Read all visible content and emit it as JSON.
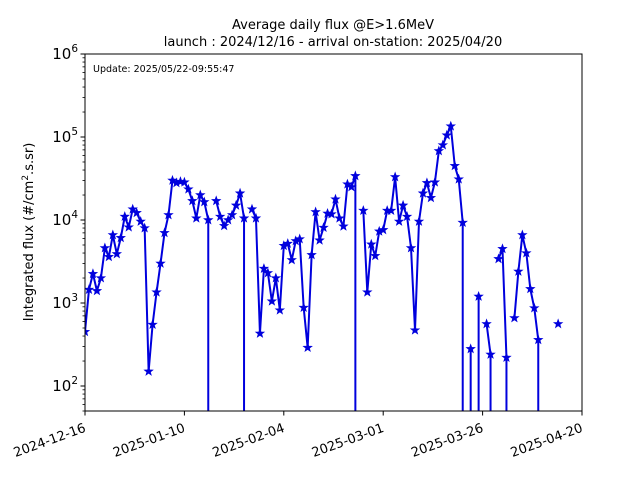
{
  "chart_data": {
    "type": "line",
    "title_line1": "Average daily flux @E>1.6MeV",
    "title_line2": "launch : 2024/12/16 - arrival on-station: 2025/04/20",
    "annotation": "Update: 2025/05/22-09:55:47",
    "ylabel_main": "Integrated flux (#/cm",
    "ylabel_sup": "2",
    "ylabel_end": ".s.sr)",
    "yscale": "log",
    "ylim": [
      50,
      1000000
    ],
    "xlim": [
      "2024-12-16",
      "2025-04-20"
    ],
    "x_ticks": [
      "2024-12-16",
      "2025-01-10",
      "2025-02-04",
      "2025-03-01",
      "2025-03-26",
      "2025-04-20"
    ],
    "y_ticks": [
      {
        "value": 100,
        "base": "10",
        "exp": "2"
      },
      {
        "value": 1000,
        "base": "10",
        "exp": "3"
      },
      {
        "value": 10000,
        "base": "10",
        "exp": "4"
      },
      {
        "value": 100000,
        "base": "10",
        "exp": "5"
      },
      {
        "value": 1000000,
        "base": "10",
        "exp": "6"
      }
    ],
    "series": [
      {
        "color": "#0000dd",
        "marker": "star",
        "points": [
          [
            "2024-12-16",
            450
          ],
          [
            "2024-12-17",
            1450
          ],
          [
            "2024-12-18",
            2250
          ],
          [
            "2024-12-19",
            1400
          ],
          [
            "2024-12-20",
            2000
          ],
          [
            "2024-12-21",
            4600
          ],
          [
            "2024-12-22",
            3600
          ],
          [
            "2024-12-23",
            6600
          ],
          [
            "2024-12-24",
            3900
          ],
          [
            "2024-12-25",
            6100
          ],
          [
            "2024-12-26",
            11000
          ],
          [
            "2024-12-27",
            8200
          ],
          [
            "2024-12-28",
            13500
          ],
          [
            "2024-12-29",
            12200
          ],
          [
            "2024-12-30",
            9600
          ],
          [
            "2024-12-31",
            8000
          ],
          [
            "2025-01-01",
            150
          ],
          [
            "2025-01-02",
            550
          ],
          [
            "2025-01-03",
            1350
          ],
          [
            "2025-01-04",
            3000
          ],
          [
            "2025-01-05",
            7000
          ],
          [
            "2025-01-06",
            11500
          ],
          [
            "2025-01-07",
            30000
          ],
          [
            "2025-01-08",
            28000
          ],
          [
            "2025-01-09",
            29000
          ],
          [
            "2025-01-10",
            28500
          ],
          [
            "2025-01-11",
            23500
          ],
          [
            "2025-01-12",
            17000
          ],
          [
            "2025-01-13",
            10500
          ],
          [
            "2025-01-14",
            20000
          ],
          [
            "2025-01-15",
            16500
          ],
          [
            "2025-01-16",
            10000
          ],
          [
            "2025-01-17",
            null
          ],
          [
            "2025-01-18",
            17000
          ],
          [
            "2025-01-19",
            11000
          ],
          [
            "2025-01-20",
            8500
          ],
          [
            "2025-01-21",
            10000
          ],
          [
            "2025-01-22",
            11500
          ],
          [
            "2025-01-23",
            15000
          ],
          [
            "2025-01-24",
            21000
          ],
          [
            "2025-01-25",
            10500
          ],
          [
            "2025-01-26",
            null
          ],
          [
            "2025-01-27",
            13500
          ],
          [
            "2025-01-28",
            10500
          ],
          [
            "2025-01-29",
            430
          ],
          [
            "2025-01-30",
            2600
          ],
          [
            "2025-01-31",
            2300
          ],
          [
            "2025-02-01",
            1050
          ],
          [
            "2025-02-02",
            2000
          ],
          [
            "2025-02-03",
            820
          ],
          [
            "2025-02-04",
            4900
          ],
          [
            "2025-02-05",
            5200
          ],
          [
            "2025-02-06",
            3300
          ],
          [
            "2025-02-07",
            5600
          ],
          [
            "2025-02-08",
            5900
          ],
          [
            "2025-02-09",
            880
          ],
          [
            "2025-02-10",
            290
          ],
          [
            "2025-02-11",
            3800
          ],
          [
            "2025-02-12",
            12500
          ],
          [
            "2025-02-13",
            5700
          ],
          [
            "2025-02-14",
            8100
          ],
          [
            "2025-02-15",
            12000
          ],
          [
            "2025-02-16",
            11800
          ],
          [
            "2025-02-17",
            17800
          ],
          [
            "2025-02-18",
            10500
          ],
          [
            "2025-02-19",
            8400
          ],
          [
            "2025-02-20",
            27000
          ],
          [
            "2025-02-21",
            25000
          ],
          [
            "2025-02-22",
            34000
          ],
          [
            "2025-02-23",
            null
          ],
          [
            "2025-02-24",
            13000
          ],
          [
            "2025-02-25",
            1350
          ],
          [
            "2025-02-26",
            5100
          ],
          [
            "2025-02-27",
            3700
          ],
          [
            "2025-02-28",
            7300
          ],
          [
            "2025-03-01",
            7600
          ],
          [
            "2025-03-02",
            13000
          ],
          [
            "2025-03-03",
            13000
          ],
          [
            "2025-03-04",
            33000
          ],
          [
            "2025-03-05",
            9600
          ],
          [
            "2025-03-06",
            15000
          ],
          [
            "2025-03-07",
            11000
          ],
          [
            "2025-03-08",
            4600
          ],
          [
            "2025-03-09",
            470
          ],
          [
            "2025-03-10",
            9600
          ],
          [
            "2025-03-11",
            21000
          ],
          [
            "2025-03-12",
            28000
          ],
          [
            "2025-03-13",
            18500
          ],
          [
            "2025-03-14",
            28500
          ],
          [
            "2025-03-15",
            68000
          ],
          [
            "2025-03-16",
            80000
          ],
          [
            "2025-03-17",
            105000
          ],
          [
            "2025-03-18",
            135000
          ],
          [
            "2025-03-19",
            45000
          ],
          [
            "2025-03-20",
            31000
          ],
          [
            "2025-03-21",
            9300
          ],
          [
            "2025-03-22",
            null
          ],
          [
            "2025-03-23",
            280
          ],
          [
            "2025-03-24",
            null
          ],
          [
            "2025-03-25",
            1200
          ],
          [
            "2025-03-26",
            null
          ],
          [
            "2025-03-27",
            560
          ],
          [
            "2025-03-28",
            240
          ],
          [
            "2025-03-29",
            null
          ],
          [
            "2025-03-30",
            3400
          ],
          [
            "2025-03-31",
            4500
          ],
          [
            "2025-04-01",
            220
          ],
          [
            "2025-04-02",
            null
          ],
          [
            "2025-04-03",
            660
          ],
          [
            "2025-04-04",
            2400
          ],
          [
            "2025-04-05",
            6600
          ],
          [
            "2025-04-06",
            4000
          ],
          [
            "2025-04-07",
            1480
          ],
          [
            "2025-04-08",
            870
          ],
          [
            "2025-04-09",
            360
          ],
          [
            "2025-04-10",
            null
          ],
          [
            "2025-04-11",
            null
          ],
          [
            "2025-04-12",
            null
          ],
          [
            "2025-04-13",
            null
          ],
          [
            "2025-04-14",
            560
          ]
        ]
      }
    ]
  }
}
